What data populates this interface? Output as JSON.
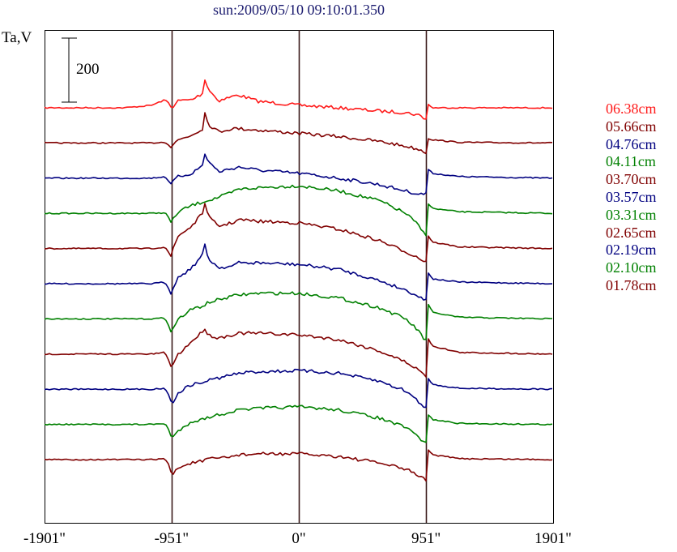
{
  "chart_data": {
    "type": "line",
    "title": "sun:2009/05/10 09:10:01.350",
    "ylabel": "Ta,V",
    "scale_bar": {
      "value": 200,
      "label": "200"
    },
    "xlim": [
      -1901,
      1901
    ],
    "xticks": [
      {
        "value": -1901,
        "label": "-1901\""
      },
      {
        "value": -951,
        "label": "-951\""
      },
      {
        "value": 0,
        "label": "0\""
      },
      {
        "value": 951,
        "label": "951\""
      },
      {
        "value": 1901,
        "label": "1901\""
      }
    ],
    "vlines": [
      -951,
      0,
      951
    ],
    "x": [
      -1901,
      -1300,
      -1100,
      -1000,
      -960,
      -951,
      -940,
      -900,
      -800,
      -720,
      -700,
      -680,
      -600,
      -500,
      -450,
      -300,
      0,
      300,
      600,
      800,
      900,
      930,
      951,
      960,
      1000,
      1200,
      1901
    ],
    "series": [
      {
        "name": "06.38cm",
        "color": "#ff1a1a",
        "values": [
          0,
          0,
          8,
          25,
          10,
          -8,
          5,
          22,
          25,
          45,
          96,
          60,
          22,
          35,
          40,
          20,
          8,
          0,
          -10,
          -15,
          -23,
          -30,
          -35,
          13,
          0,
          0,
          0
        ]
      },
      {
        "name": "05.66cm",
        "color": "#800000",
        "values": [
          0,
          0,
          0,
          3,
          -10,
          -20,
          -5,
          10,
          25,
          45,
          100,
          60,
          35,
          45,
          45,
          40,
          30,
          20,
          5,
          -10,
          -20,
          -25,
          -30,
          15,
          10,
          2,
          0
        ]
      },
      {
        "name": "04.76cm",
        "color": "#000080",
        "values": [
          0,
          0,
          0,
          5,
          -15,
          -25,
          -10,
          5,
          15,
          40,
          80,
          55,
          20,
          30,
          35,
          25,
          15,
          0,
          -20,
          -40,
          -50,
          -50,
          -45,
          30,
          15,
          5,
          0
        ]
      },
      {
        "name": "04.11cm",
        "color": "#008000",
        "values": [
          0,
          0,
          0,
          2,
          -20,
          -40,
          -20,
          5,
          25,
          35,
          40,
          40,
          50,
          65,
          75,
          80,
          86,
          70,
          40,
          0,
          -40,
          -60,
          -65,
          35,
          15,
          5,
          0
        ]
      },
      {
        "name": "03.70cm",
        "color": "#800000",
        "values": [
          0,
          0,
          0,
          5,
          -20,
          -35,
          0,
          40,
          70,
          110,
          150,
          100,
          70,
          80,
          90,
          85,
          80,
          60,
          25,
          -10,
          -30,
          -38,
          -40,
          45,
          20,
          5,
          0
        ]
      },
      {
        "name": "03.57cm",
        "color": "#000080",
        "values": [
          0,
          0,
          0,
          5,
          -25,
          -40,
          -10,
          20,
          50,
          90,
          125,
          80,
          50,
          55,
          65,
          65,
          60,
          45,
          10,
          -20,
          -40,
          -50,
          -50,
          40,
          15,
          5,
          0
        ]
      },
      {
        "name": "03.31cm",
        "color": "#008000",
        "values": [
          0,
          0,
          0,
          3,
          -30,
          -60,
          -30,
          0,
          30,
          40,
          45,
          50,
          60,
          70,
          75,
          80,
          80,
          65,
          35,
          0,
          -40,
          -60,
          -65,
          50,
          20,
          5,
          0
        ]
      },
      {
        "name": "02.65cm",
        "color": "#800000",
        "values": [
          0,
          0,
          0,
          5,
          -30,
          -55,
          -30,
          0,
          40,
          70,
          84,
          60,
          50,
          60,
          65,
          65,
          60,
          45,
          10,
          -25,
          -50,
          -65,
          -68,
          55,
          25,
          5,
          0
        ]
      },
      {
        "name": "02.19cm",
        "color": "#000080",
        "values": [
          0,
          0,
          0,
          3,
          -25,
          -60,
          -40,
          -10,
          15,
          20,
          25,
          28,
          35,
          45,
          50,
          55,
          58,
          50,
          25,
          -5,
          -40,
          -55,
          -60,
          40,
          15,
          3,
          0
        ]
      },
      {
        "name": "02.10cm",
        "color": "#008000",
        "values": [
          0,
          0,
          0,
          3,
          -25,
          -55,
          -40,
          -20,
          10,
          15,
          20,
          22,
          30,
          40,
          45,
          50,
          55,
          45,
          20,
          -10,
          -40,
          -55,
          -60,
          35,
          15,
          3,
          0
        ]
      },
      {
        "name": "01.78cm",
        "color": "#800000",
        "values": [
          0,
          0,
          0,
          3,
          -25,
          -58,
          -45,
          -25,
          -10,
          -5,
          0,
          0,
          5,
          10,
          15,
          18,
          18,
          10,
          -10,
          -30,
          -50,
          -60,
          -63,
          35,
          15,
          3,
          0
        ]
      }
    ]
  }
}
